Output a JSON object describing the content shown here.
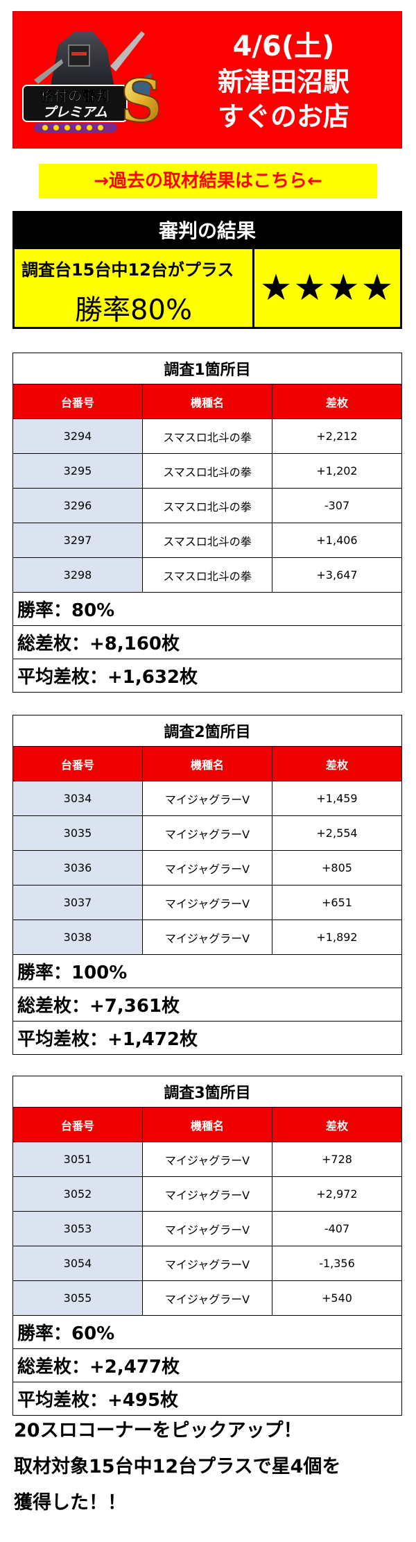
{
  "banner": {
    "logo_text": "格付の審判プレミアムS",
    "date": "4/6(土)",
    "station": "新津田沼駅",
    "store": "すぐのお店",
    "bg_color": "#fb0000"
  },
  "past_link": "→過去の取材結果はこちら←",
  "judgment": {
    "header": "審判の結果",
    "subtitle": "調査台15台中12台がプラス",
    "win_rate": "勝率80%",
    "stars": "★★★★"
  },
  "columns": {
    "id": "台番号",
    "model": "機種名",
    "diff": "差枚"
  },
  "surveys": [
    {
      "title": "調査1箇所目",
      "rows": [
        {
          "id": "3294",
          "model": "スマスロ北斗の拳",
          "diff": "+2,212"
        },
        {
          "id": "3295",
          "model": "スマスロ北斗の拳",
          "diff": "+1,202"
        },
        {
          "id": "3296",
          "model": "スマスロ北斗の拳",
          "diff": "-307"
        },
        {
          "id": "3297",
          "model": "スマスロ北斗の拳",
          "diff": "+1,406"
        },
        {
          "id": "3298",
          "model": "スマスロ北斗の拳",
          "diff": "+3,647"
        }
      ],
      "win_rate": "勝率：80%",
      "total": "総差枚：+8,160枚",
      "average": "平均差枚：+1,632枚"
    },
    {
      "title": "調査2箇所目",
      "rows": [
        {
          "id": "3034",
          "model": "マイジャグラーV",
          "diff": "+1,459"
        },
        {
          "id": "3035",
          "model": "マイジャグラーV",
          "diff": "+2,554"
        },
        {
          "id": "3036",
          "model": "マイジャグラーV",
          "diff": "+805"
        },
        {
          "id": "3037",
          "model": "マイジャグラーV",
          "diff": "+651"
        },
        {
          "id": "3038",
          "model": "マイジャグラーV",
          "diff": "+1,892"
        }
      ],
      "win_rate": "勝率：100%",
      "total": "総差枚：+7,361枚",
      "average": "平均差枚：+1,472枚"
    },
    {
      "title": "調査3箇所目",
      "rows": [
        {
          "id": "3051",
          "model": "マイジャグラーV",
          "diff": "+728"
        },
        {
          "id": "3052",
          "model": "マイジャグラーV",
          "diff": "+2,972"
        },
        {
          "id": "3053",
          "model": "マイジャグラーV",
          "diff": "-407"
        },
        {
          "id": "3054",
          "model": "マイジャグラーV",
          "diff": "-1,356"
        },
        {
          "id": "3055",
          "model": "マイジャグラーV",
          "diff": "+540"
        }
      ],
      "win_rate": "勝率：60%",
      "total": "総差枚：+2,477枚",
      "average": "平均差枚：+495枚"
    }
  ],
  "comment": [
    "20スロコーナーをピックアップ！",
    "取材対象15台中12台プラスで星4個を",
    "獲得した！！"
  ]
}
